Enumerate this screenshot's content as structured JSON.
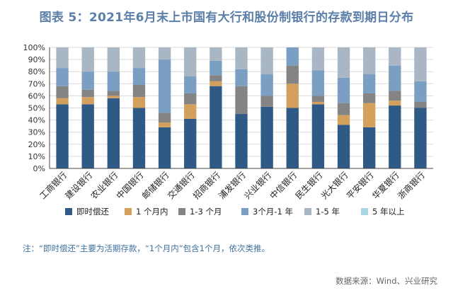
{
  "title": "图表 5：2021年6月末上市国有大行和股份制银行的存款到期日分布",
  "note": "注：“即时偿还”主要为活期存款，“1个月内”包含1个月，依次类推。",
  "source": "数据来源：Wind、兴业研究",
  "colors": {
    "即时偿还": "#2f5a86",
    "1 个月内": "#d3a15d",
    "1-3 个月": "#848484",
    "3个月-1 年": "#7a9fc2",
    "1-5 年": "#a9b6c4",
    "5 年以上": "#a8d6e3"
  },
  "chart_data": {
    "type": "bar",
    "stacked": true,
    "title": "",
    "xlabel": "",
    "ylabel": "",
    "ylim": [
      0,
      100
    ],
    "yticks": [
      "0%",
      "10%",
      "20%",
      "30%",
      "40%",
      "50%",
      "60%",
      "70%",
      "80%",
      "90%",
      "100%"
    ],
    "grid": true,
    "legend_position": "bottom",
    "categories": [
      "工商银行",
      "建设银行",
      "农业银行",
      "中国银行",
      "邮储银行",
      "交通银行",
      "招商银行",
      "浦发银行",
      "兴业银行",
      "中信银行",
      "民生银行",
      "光大银行",
      "平安银行",
      "华夏银行",
      "浙商银行"
    ],
    "series": [
      {
        "name": "即时偿还",
        "values": [
          53,
          53,
          58,
          50,
          34,
          41,
          68,
          45,
          51,
          50,
          53,
          36,
          34,
          52,
          50
        ]
      },
      {
        "name": "1 个月内",
        "values": [
          5,
          6,
          2,
          9,
          4,
          12,
          4,
          0,
          0,
          20,
          2,
          8,
          20,
          4,
          0
        ]
      },
      {
        "name": "1-3 个月",
        "values": [
          10,
          6,
          4,
          10,
          8,
          9,
          5,
          23,
          9,
          15,
          5,
          10,
          8,
          8,
          5
        ]
      },
      {
        "name": "3个月-1 年",
        "values": [
          15,
          15,
          16,
          14,
          44,
          14,
          12,
          14,
          18,
          15,
          21,
          21,
          16,
          21,
          17
        ]
      },
      {
        "name": "1-5 年",
        "values": [
          17,
          20,
          20,
          17,
          10,
          24,
          11,
          18,
          22,
          0,
          19,
          25,
          22,
          15,
          28
        ]
      },
      {
        "name": "5 年以上",
        "values": [
          0,
          0,
          0,
          0,
          0,
          0,
          0,
          0,
          0,
          0,
          0,
          0,
          0,
          0,
          0
        ]
      }
    ]
  }
}
